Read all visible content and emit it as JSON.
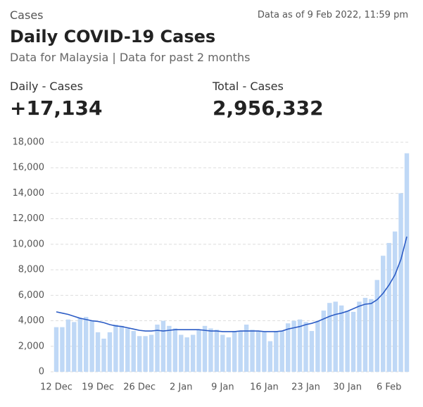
{
  "header": {
    "section": "Cases",
    "as_of": "Data as of 9 Feb 2022, 11:59 pm",
    "title": "Daily COVID-19 Cases",
    "subtitle_left": "Data for Malaysia",
    "subtitle_right": "Data for past 2 months"
  },
  "stats": [
    {
      "label": "Daily - Cases",
      "value": "+17,134"
    },
    {
      "label": "Total - Cases",
      "value": "2,956,332"
    }
  ],
  "chart_data": {
    "type": "bar",
    "categories": [
      "12 Dec",
      null,
      null,
      null,
      null,
      null,
      null,
      "19 Dec",
      null,
      null,
      null,
      null,
      null,
      null,
      "26 Dec",
      null,
      null,
      null,
      null,
      null,
      null,
      "2 Jan",
      null,
      null,
      null,
      null,
      null,
      null,
      "9 Jan",
      null,
      null,
      null,
      null,
      null,
      null,
      "16 Jan",
      null,
      null,
      null,
      null,
      null,
      null,
      "23 Jan",
      null,
      null,
      null,
      null,
      null,
      null,
      "30 Jan",
      null,
      null,
      null,
      null,
      null,
      null,
      "6 Feb",
      null,
      null,
      null
    ],
    "series": [
      {
        "type": "bar",
        "color": "#bfd8f6",
        "values": [
          3500,
          3500,
          4100,
          3900,
          4200,
          4300,
          4000,
          3100,
          2600,
          3100,
          3700,
          3600,
          3400,
          3200,
          2800,
          2800,
          2900,
          3700,
          4000,
          3600,
          3400,
          2900,
          2700,
          2900,
          3300,
          3600,
          3400,
          3300,
          2900,
          2700,
          3200,
          3200,
          3700,
          3300,
          3200,
          3100,
          2400,
          3200,
          3200,
          3800,
          4000,
          4100,
          3900,
          3200,
          4000,
          4800,
          5400,
          5500,
          5200,
          4800,
          4700,
          5500,
          5800,
          5700,
          7200,
          9100,
          10100,
          11000,
          14000,
          17134
        ]
      },
      {
        "type": "line",
        "color": "#2c5cc5",
        "values": [
          4700,
          4600,
          4500,
          4350,
          4200,
          4100,
          4000,
          3950,
          3850,
          3700,
          3600,
          3550,
          3450,
          3350,
          3250,
          3200,
          3200,
          3250,
          3200,
          3250,
          3300,
          3300,
          3300,
          3300,
          3300,
          3250,
          3200,
          3200,
          3150,
          3150,
          3150,
          3200,
          3200,
          3200,
          3200,
          3150,
          3150,
          3150,
          3200,
          3350,
          3450,
          3550,
          3700,
          3800,
          3950,
          4150,
          4350,
          4500,
          4600,
          4750,
          4950,
          5150,
          5300,
          5350,
          5650,
          6150,
          6800,
          7600,
          8800,
          10600
        ]
      }
    ],
    "ylim": [
      0,
      18000
    ],
    "yticks": [
      0,
      {
        "value": 2000,
        "label": "2,000"
      },
      {
        "value": 4000,
        "label": "4,000"
      },
      {
        "value": 6000,
        "label": "6,000"
      },
      {
        "value": 8000,
        "label": "8,000"
      },
      {
        "value": 10000,
        "label": "10,000"
      },
      {
        "value": 12000,
        "label": "12,000"
      },
      {
        "value": 14000,
        "label": "14,000"
      },
      {
        "value": 16000,
        "label": "16,000"
      },
      {
        "value": 18000,
        "label": "18,000"
      }
    ],
    "grid": true
  }
}
